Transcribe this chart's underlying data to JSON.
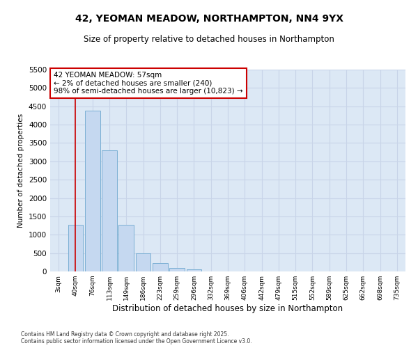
{
  "title_line1": "42, YEOMAN MEADOW, NORTHAMPTON, NN4 9YX",
  "title_line2": "Size of property relative to detached houses in Northampton",
  "xlabel": "Distribution of detached houses by size in Northampton",
  "ylabel": "Number of detached properties",
  "categories": [
    "3sqm",
    "40sqm",
    "76sqm",
    "113sqm",
    "149sqm",
    "186sqm",
    "223sqm",
    "259sqm",
    "296sqm",
    "332sqm",
    "369sqm",
    "406sqm",
    "442sqm",
    "479sqm",
    "515sqm",
    "552sqm",
    "589sqm",
    "625sqm",
    "662sqm",
    "698sqm",
    "735sqm"
  ],
  "values": [
    0,
    1280,
    4380,
    3300,
    1280,
    500,
    230,
    100,
    60,
    0,
    0,
    0,
    0,
    0,
    0,
    0,
    0,
    0,
    0,
    0,
    0
  ],
  "bar_color": "#c5d8f0",
  "bar_edge_color": "#7bafd4",
  "vline_x_idx": 1,
  "vline_color": "#cc0000",
  "annotation_text": "42 YEOMAN MEADOW: 57sqm\n← 2% of detached houses are smaller (240)\n98% of semi-detached houses are larger (10,823) →",
  "annotation_box_color": "#ffffff",
  "annotation_box_edge": "#cc0000",
  "annotation_fontsize": 7.5,
  "ylim": [
    0,
    5500
  ],
  "yticks": [
    0,
    500,
    1000,
    1500,
    2000,
    2500,
    3000,
    3500,
    4000,
    4500,
    5000,
    5500
  ],
  "grid_color": "#c8d4e8",
  "bg_color": "#dce8f5",
  "footnote": "Contains HM Land Registry data © Crown copyright and database right 2025.\nContains public sector information licensed under the Open Government Licence v3.0.",
  "title_fontsize": 10,
  "subtitle_fontsize": 8.5,
  "xlabel_fontsize": 8.5,
  "ylabel_fontsize": 7.5,
  "tick_fontsize": 7.5,
  "xtick_fontsize": 6.5,
  "footnote_fontsize": 5.5
}
